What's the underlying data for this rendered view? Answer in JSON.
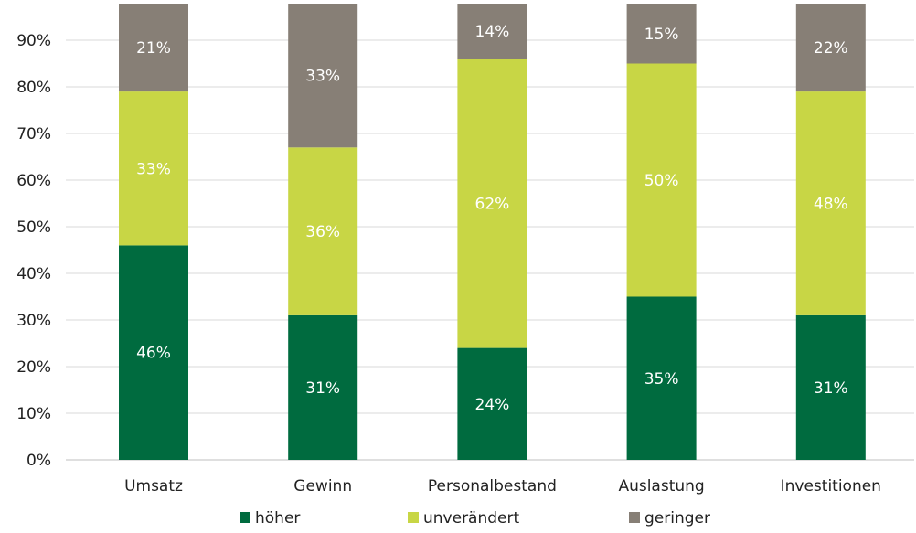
{
  "chart_data": {
    "type": "bar",
    "stacked": true,
    "categories": [
      "Umsatz",
      "Gewinn",
      "Personalbestand",
      "Auslastung",
      "Investitionen"
    ],
    "series": [
      {
        "name": "höher",
        "values": [
          46,
          31,
          24,
          35,
          31
        ],
        "labels": [
          "46%",
          "31%",
          "24%",
          "35%",
          "31%"
        ],
        "color": "#006b3f"
      },
      {
        "name": "unverändert",
        "values": [
          33,
          36,
          62,
          50,
          48
        ],
        "labels": [
          "33%",
          "36%",
          "62%",
          "50%",
          "48%"
        ],
        "color": "#c8d645"
      },
      {
        "name": "geringer",
        "values": [
          21,
          33,
          14,
          15,
          22
        ],
        "labels": [
          "21%",
          "33%",
          "14%",
          "15%",
          "22%"
        ],
        "color": "#877f76"
      }
    ],
    "yticks": [
      0,
      10,
      20,
      30,
      40,
      50,
      60,
      70,
      80,
      90
    ],
    "ytick_labels": [
      "0%",
      "10%",
      "20%",
      "30%",
      "40%",
      "50%",
      "60%",
      "70%",
      "80%",
      "90%"
    ],
    "ylim": [
      0,
      100
    ],
    "grid": true,
    "legend_position": "bottom",
    "title": "",
    "xlabel": "",
    "ylabel": ""
  }
}
